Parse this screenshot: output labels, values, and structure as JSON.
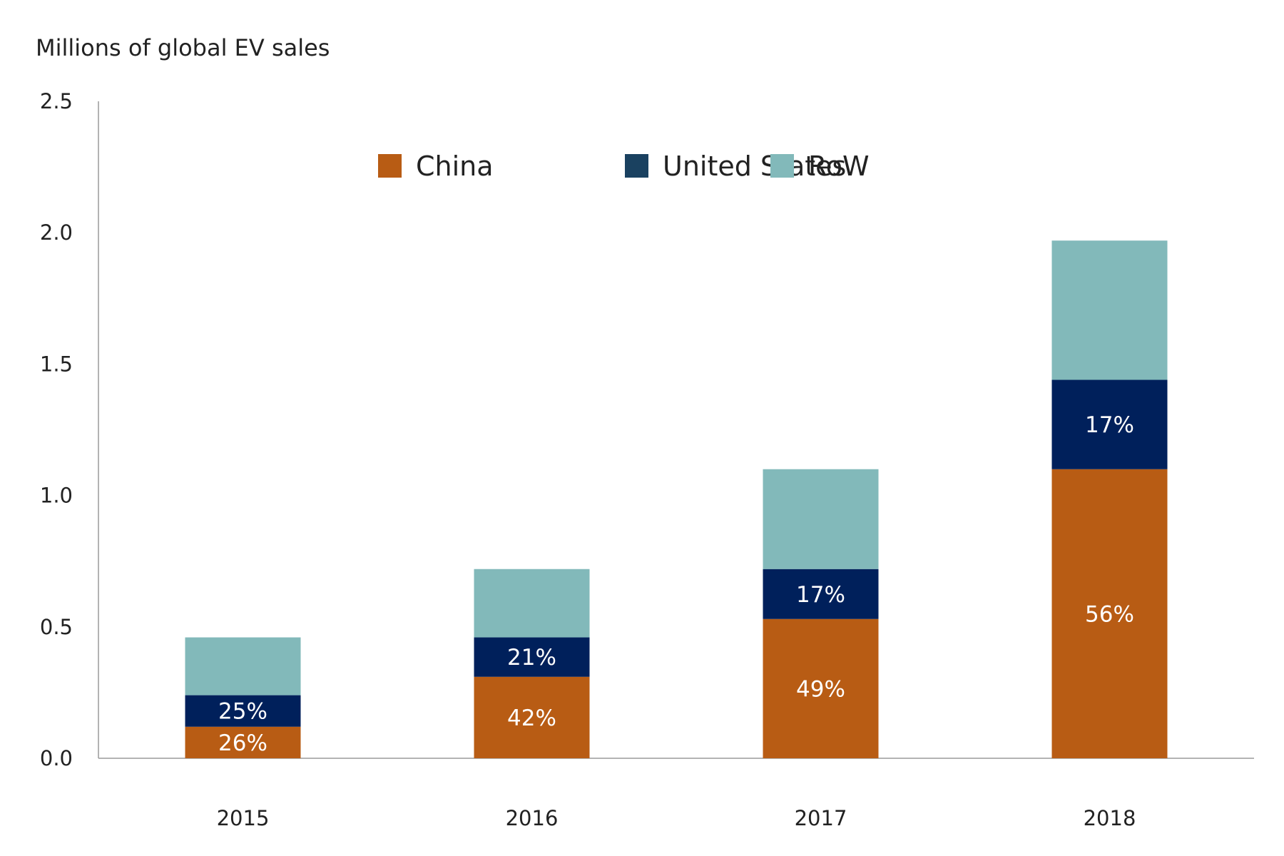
{
  "chart_data": {
    "type": "bar",
    "stacked": true,
    "title": "",
    "ylabel": "Millions of global EV sales",
    "xlabel": "",
    "ylim": [
      0,
      2.5
    ],
    "yticks": [
      "0.0",
      "0.5",
      "1.0",
      "1.5",
      "2.0",
      "2.5"
    ],
    "categories": [
      "2015",
      "2016",
      "2017",
      "2018"
    ],
    "legend_position": "top-center",
    "grid": false,
    "series": [
      {
        "name": "China",
        "color": "#b85c14",
        "values": [
          0.12,
          0.31,
          0.53,
          1.1
        ],
        "labels": [
          "26%",
          "42%",
          "49%",
          "56%"
        ]
      },
      {
        "name": "United States",
        "color": "#00205b",
        "legend_color": "#1a4160",
        "values": [
          0.12,
          0.15,
          0.19,
          0.34
        ],
        "labels": [
          "25%",
          "21%",
          "17%",
          "17%"
        ]
      },
      {
        "name": "RoW",
        "color": "#82b9ba",
        "values": [
          0.22,
          0.26,
          0.38,
          0.53
        ],
        "labels": [
          "",
          "",
          "",
          ""
        ]
      }
    ]
  }
}
